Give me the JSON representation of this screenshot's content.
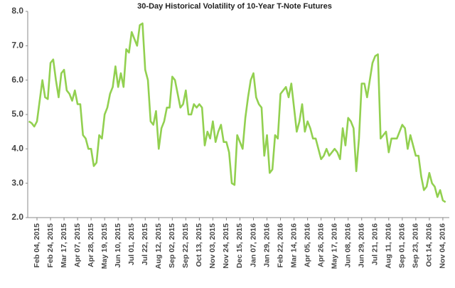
{
  "chart_data": {
    "type": "line",
    "title": "30-Day Historical Volatility of 10-Year T-Note Futures",
    "categories": [
      null,
      null,
      null,
      "Feb 04, 2015",
      null,
      null,
      null,
      null,
      "Feb 24, 2015",
      null,
      null,
      null,
      null,
      "Mar 17, 2015",
      null,
      null,
      null,
      null,
      "Apr 07, 2015",
      null,
      null,
      null,
      null,
      "Apr 28, 2015",
      null,
      null,
      null,
      null,
      "May 19, 2015",
      null,
      null,
      null,
      null,
      "Jun 10, 2015",
      null,
      null,
      null,
      null,
      "Jul 01, 2015",
      null,
      null,
      null,
      null,
      "Jul 22, 2015",
      null,
      null,
      null,
      null,
      "Aug 12, 2015",
      null,
      null,
      null,
      null,
      "Sep 02, 2015",
      null,
      null,
      null,
      null,
      "Sep 22, 2015",
      null,
      null,
      null,
      null,
      "Oct 13, 2015",
      null,
      null,
      null,
      null,
      "Nov 03, 2015",
      null,
      null,
      null,
      null,
      "Nov 24, 2015",
      null,
      null,
      null,
      null,
      "Dec 15, 2015",
      null,
      null,
      null,
      null,
      "Jan 07, 2016",
      null,
      null,
      null,
      null,
      "Jan 29, 2016",
      null,
      null,
      null,
      null,
      "Feb 22, 2016",
      null,
      null,
      null,
      null,
      "Mar 14, 2016",
      null,
      null,
      null,
      null,
      "Apr 05, 2016",
      null,
      null,
      null,
      null,
      "Apr 26, 2016",
      null,
      null,
      null,
      null,
      "May 17, 2016",
      null,
      null,
      null,
      null,
      "Jun 08, 2016",
      null,
      null,
      null,
      null,
      "Jun 29, 2016",
      null,
      null,
      null,
      null,
      "Jul 21, 2016",
      null,
      null,
      null,
      null,
      "Aug 11, 2016",
      null,
      null,
      null,
      null,
      "Sep 01, 2016",
      null,
      null,
      null,
      null,
      "Sep 23, 2016",
      null,
      null,
      null,
      null,
      "Oct 14, 2016",
      null,
      null,
      null,
      null,
      "Nov 04, 2016",
      null
    ],
    "values": [
      4.8,
      4.75,
      4.65,
      4.8,
      5.4,
      6.0,
      5.5,
      5.45,
      6.5,
      6.6,
      6.0,
      5.5,
      6.2,
      6.3,
      5.7,
      5.6,
      5.4,
      5.7,
      5.3,
      5.3,
      4.4,
      4.3,
      4.0,
      4.0,
      3.5,
      3.6,
      4.4,
      4.3,
      5.0,
      5.2,
      5.6,
      5.8,
      6.4,
      5.8,
      6.2,
      5.8,
      6.9,
      6.8,
      7.4,
      7.2,
      7.0,
      7.6,
      7.65,
      6.3,
      6.0,
      4.8,
      4.7,
      5.1,
      4.0,
      4.6,
      4.8,
      5.2,
      5.2,
      6.1,
      6.0,
      5.6,
      5.2,
      5.3,
      5.7,
      5.0,
      5.0,
      5.3,
      5.2,
      5.3,
      5.2,
      4.1,
      4.5,
      4.3,
      4.8,
      4.2,
      4.5,
      4.7,
      4.2,
      4.2,
      3.9,
      3.0,
      2.95,
      4.4,
      4.2,
      4.0,
      4.9,
      5.5,
      6.0,
      6.2,
      5.5,
      5.3,
      5.2,
      3.8,
      4.4,
      3.3,
      3.4,
      4.4,
      4.3,
      5.6,
      5.7,
      5.8,
      5.5,
      5.9,
      5.2,
      4.5,
      4.8,
      5.3,
      4.5,
      4.8,
      4.6,
      4.3,
      4.3,
      4.0,
      3.7,
      3.8,
      4.0,
      3.8,
      3.9,
      4.0,
      3.9,
      3.7,
      4.6,
      4.1,
      4.9,
      4.8,
      4.6,
      3.35,
      4.3,
      5.9,
      5.9,
      5.5,
      6.0,
      6.5,
      6.7,
      6.75,
      4.3,
      4.4,
      4.5,
      3.9,
      4.3,
      4.3,
      4.3,
      4.5,
      4.7,
      4.6,
      4.0,
      4.4,
      4.1,
      3.8,
      3.8,
      3.2,
      2.8,
      2.9,
      3.3,
      3.0,
      2.9,
      2.6,
      2.8,
      2.5,
      2.45
    ],
    "color": "#92d050",
    "ylim": [
      2,
      8
    ],
    "yticks": [
      {
        "value": 2,
        "label": "2.0"
      },
      {
        "value": 3,
        "label": "3.0"
      },
      {
        "value": 4,
        "label": "4.0"
      },
      {
        "value": 5,
        "label": "5.0"
      },
      {
        "value": 6,
        "label": "6.0"
      },
      {
        "value": 7,
        "label": "7.0"
      },
      {
        "value": 8,
        "label": "8.0"
      }
    ],
    "grid": false
  }
}
